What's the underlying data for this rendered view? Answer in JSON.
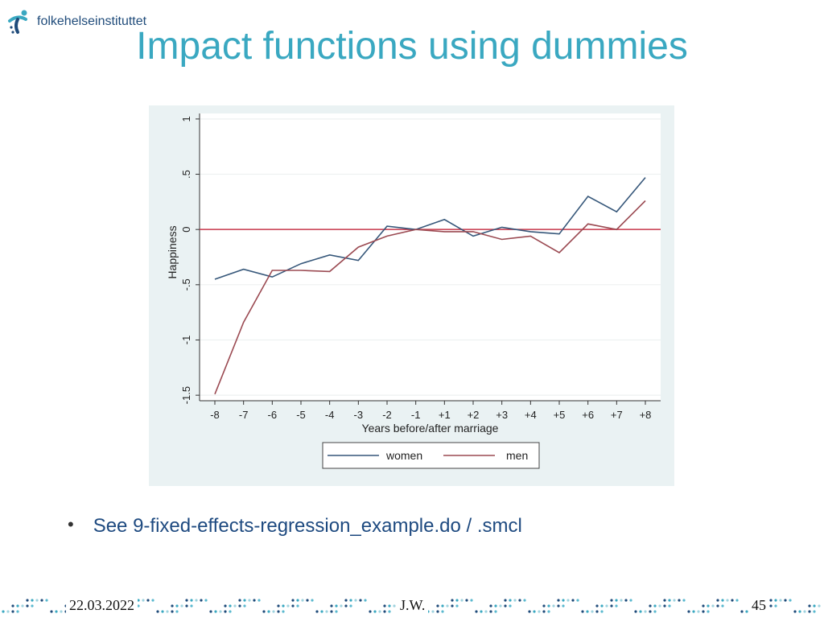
{
  "logo": {
    "text": "folkehelseinstituttet",
    "icon": "fhi-logo-icon"
  },
  "slide": {
    "title": "Impact functions using dummies"
  },
  "bullet": {
    "text": "See 9-fixed-effects-regression_example.do / .smcl"
  },
  "footer": {
    "date": "22.03.2022",
    "author": "J.W.",
    "page": "45"
  },
  "colors": {
    "title": "#3aa8c1",
    "women": "#36577a",
    "men": "#9b4a52",
    "refline": "#c8374a",
    "chart_bg": "#eaf2f3"
  },
  "chart_data": {
    "type": "line",
    "title": "",
    "xlabel": "Years before/after marriage",
    "ylabel": "Happiness",
    "x": [
      "-8",
      "-7",
      "-6",
      "-5",
      "-4",
      "-3",
      "-2",
      "-1",
      "+1",
      "+2",
      "+3",
      "+4",
      "+5",
      "+6",
      "+7",
      "+8"
    ],
    "yticks": [
      "-1.5",
      "-1",
      "-.5",
      "0",
      ".5",
      "1"
    ],
    "ytick_values": [
      -1.5,
      -1,
      -0.5,
      0,
      0.5,
      1
    ],
    "ylim": [
      -1.55,
      1.05
    ],
    "grid": true,
    "reference_line": 0,
    "legend_position": "bottom",
    "series": [
      {
        "name": "women",
        "values": [
          -0.45,
          -0.36,
          -0.43,
          -0.31,
          -0.23,
          -0.28,
          0.03,
          0.0,
          0.09,
          -0.06,
          0.02,
          -0.02,
          -0.04,
          0.3,
          0.16,
          0.47
        ]
      },
      {
        "name": "men",
        "values": [
          -1.49,
          -0.84,
          -0.37,
          -0.37,
          -0.38,
          -0.16,
          -0.06,
          0.0,
          -0.02,
          -0.02,
          -0.09,
          -0.06,
          -0.21,
          0.05,
          0.0,
          0.26
        ]
      }
    ]
  }
}
